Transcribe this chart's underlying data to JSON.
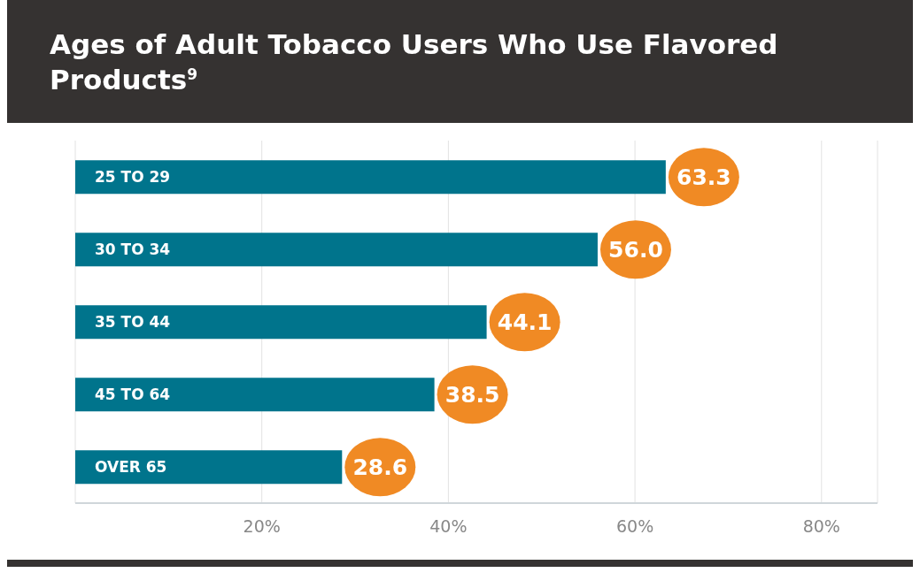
{
  "chart_data": {
    "type": "bar",
    "orientation": "horizontal",
    "title": "Ages of Adult Tobacco Users Who Use Flavored Products$^{9}$",
    "categories": [
      "25 TO 29",
      "30 TO 34",
      "35 TO 44",
      "45 TO 64",
      "OVER 65"
    ],
    "series": [
      {
        "color": "#00748c",
        "values": [
          63.3,
          56.0,
          44.1,
          38.5,
          28.6
        ],
        "value_labels": [
          "63.3",
          "56.0",
          "44.1",
          "38.5",
          "28.6"
        ]
      }
    ],
    "xlim": [
      0,
      86
    ],
    "xticks": [
      {
        "value": 20,
        "label": "20%"
      },
      {
        "value": 40,
        "label": "40%"
      },
      {
        "value": 60,
        "label": "60%"
      },
      {
        "value": 80,
        "label": "80%"
      }
    ],
    "grid": "x"
  }
}
